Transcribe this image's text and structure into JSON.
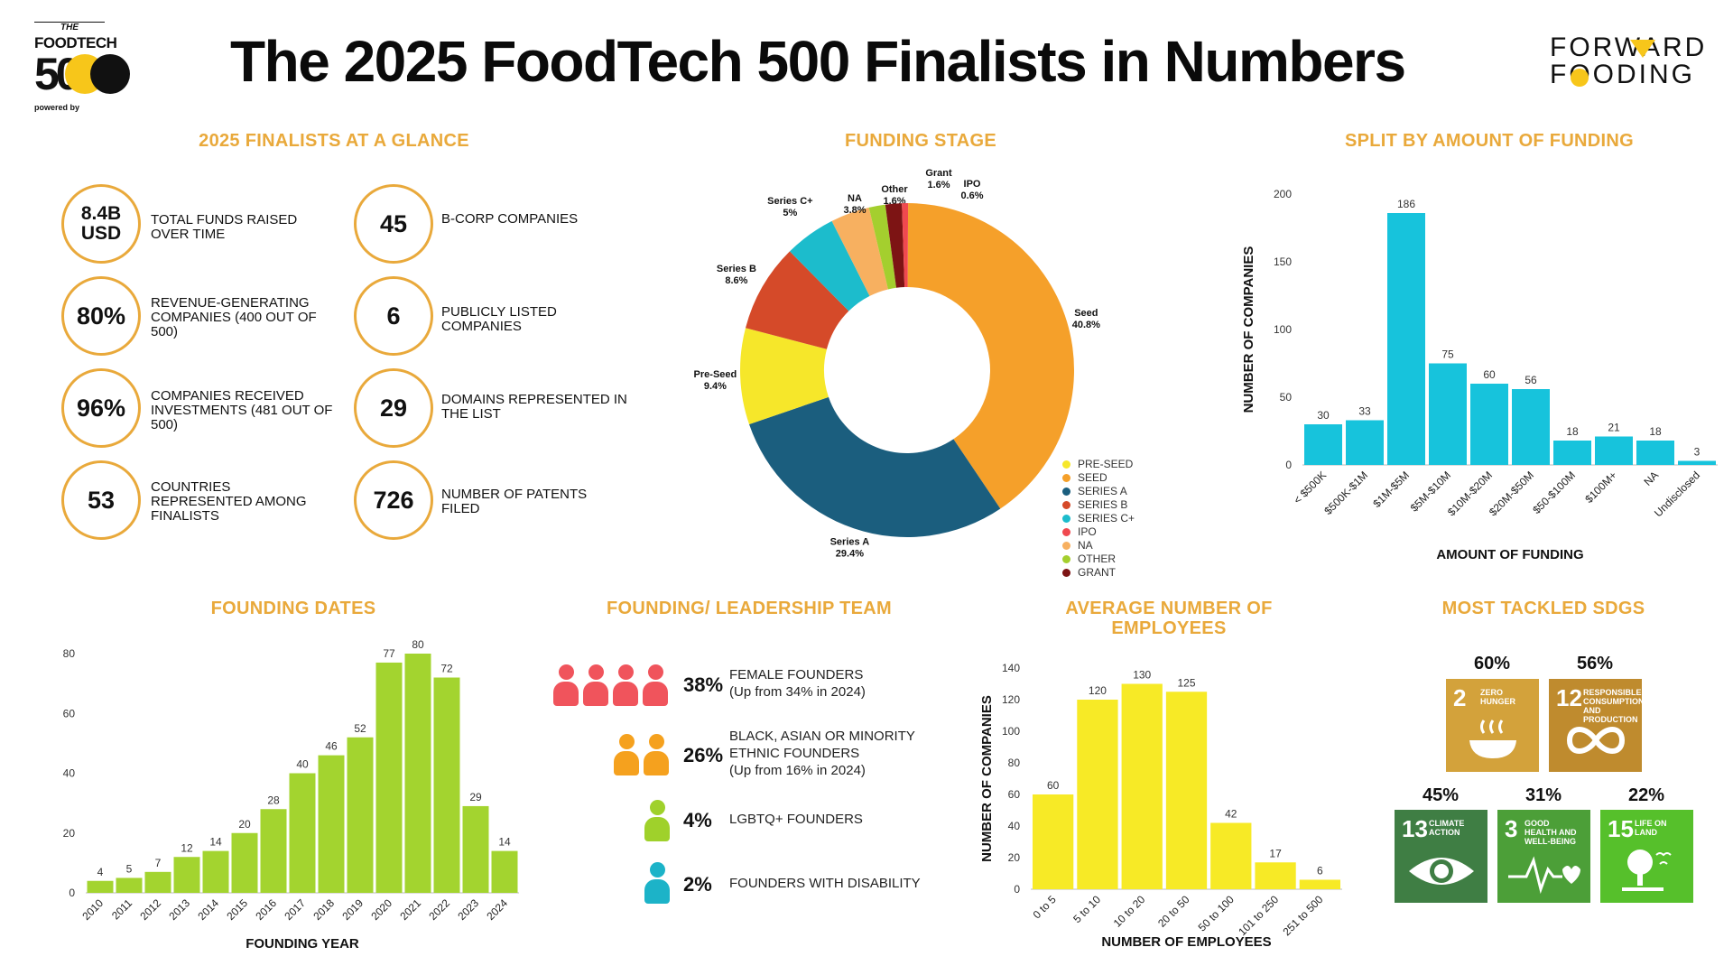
{
  "header": {
    "title": "The 2025 FoodTech 500 Finalists in Numbers",
    "logo_the": "THE",
    "logo_foodtech": "FOODTECH",
    "logo_500": "500",
    "logo_powered": "powered by",
    "brand_line1": "FORWARD",
    "brand_line2": "FOODING"
  },
  "glance": {
    "title": "2025 FINALISTS AT A GLANCE",
    "items": [
      {
        "value": "8.4B USD",
        "label": "TOTAL FUNDS RAISED OVER TIME"
      },
      {
        "value": "80%",
        "label": "REVENUE-GENERATING COMPANIES (400 out of 500)"
      },
      {
        "value": "96%",
        "label": "COMPANIES RECEIVED INVESTMENTS (481 out of 500)"
      },
      {
        "value": "53",
        "label": "COUNTRIES REPRESENTED AMONG FINALISTS"
      },
      {
        "value": "45",
        "label": "B-CORP COMPANIES"
      },
      {
        "value": "6",
        "label": "PUBLICLY LISTED COMPANIES"
      },
      {
        "value": "29",
        "label": "DOMAINS REPRESENTED IN THE LIST"
      },
      {
        "value": "726",
        "label": "NUMBER OF PATENTS FILED"
      }
    ]
  },
  "team": {
    "title": "FOUNDING/ LEADERSHIP TEAM",
    "rows": [
      {
        "pct": "38%",
        "line1": "FEMALE FOUNDERS",
        "line2": "(Up from 34% in 2024)",
        "line3": ""
      },
      {
        "pct": "26%",
        "line1": "BLACK, ASIAN OR MINORITY",
        "line2": "ETHNIC FOUNDERS",
        "line3": "(Up from 16% in 2024)"
      },
      {
        "pct": "4%",
        "line1": "LGBTQ+ FOUNDERS",
        "line2": "",
        "line3": ""
      },
      {
        "pct": "2%",
        "line1": "FOUNDERS WITH DISABILITY",
        "line2": "",
        "line3": ""
      }
    ],
    "colors": [
      "#f0545c",
      "#f5a11e",
      "#9fd12b",
      "#1cb3c8"
    ]
  },
  "sdgs": {
    "title": "MOST TACKLED SDGS",
    "items": [
      {
        "pct": "60%",
        "num": "2",
        "label": "ZERO HUNGER",
        "color": "#d3a23b"
      },
      {
        "pct": "56%",
        "num": "12",
        "label": "RESPONSIBLE CONSUMPTION AND PRODUCTION",
        "color": "#bf8b2e"
      },
      {
        "pct": "45%",
        "num": "13",
        "label": "CLIMATE ACTION",
        "color": "#3f7e44"
      },
      {
        "pct": "31%",
        "num": "3",
        "label": "GOOD HEALTH AND WELL-BEING",
        "color": "#4c9f38"
      },
      {
        "pct": "22%",
        "num": "15",
        "label": "LIFE ON LAND",
        "color": "#56c02b"
      }
    ]
  },
  "chart_data": [
    {
      "id": "funding_stage",
      "type": "pie",
      "title": "FUNDING STAGE",
      "slices": [
        {
          "name": "Seed",
          "legend": "SEED",
          "value": 40.8,
          "label": "40.8%",
          "color": "#f5a02a"
        },
        {
          "name": "Series A",
          "legend": "SERIES A",
          "value": 29.4,
          "label": "29.4%",
          "color": "#1b5e7e"
        },
        {
          "name": "Pre-Seed",
          "legend": "PRE-SEED",
          "value": 9.4,
          "label": "9.4%",
          "color": "#f6e72a"
        },
        {
          "name": "Series B",
          "legend": "SERIES B",
          "value": 8.6,
          "label": "8.6%",
          "color": "#d54a29"
        },
        {
          "name": "Series C+",
          "legend": "SERIES C+",
          "value": 5,
          "label": "5%",
          "color": "#1cbccc"
        },
        {
          "name": "NA",
          "legend": "NA",
          "value": 3.8,
          "label": "3.8%",
          "color": "#f7b060"
        },
        {
          "name": "Other",
          "legend": "OTHER",
          "value": 1.6,
          "label": "1.6%",
          "color": "#a4cf2e"
        },
        {
          "name": "Grant",
          "legend": "GRANT",
          "value": 1.6,
          "label": "1.6%",
          "color": "#7d1414"
        },
        {
          "name": "IPO",
          "legend": "IPO",
          "value": 0.6,
          "label": "0.6%",
          "color": "#f0494f"
        }
      ],
      "legend_order": [
        "PRE-SEED",
        "SEED",
        "SERIES A",
        "SERIES B",
        "SERIES C+",
        "IPO",
        "NA",
        "OTHER",
        "GRANT"
      ]
    },
    {
      "id": "funding_amount",
      "type": "bar",
      "title": "SPLIT BY AMOUNT OF FUNDING",
      "xlabel": "AMOUNT OF FUNDING",
      "ylabel": "NUMBER OF COMPANIES",
      "ylim": [
        0,
        200
      ],
      "yticks": [
        0,
        50,
        100,
        150,
        200
      ],
      "categories": [
        "< $500K",
        "$500K-$1M",
        "$1M-$5M",
        "$5M-$10M",
        "$10M-$20M",
        "$20M-$50M",
        "$50-$100M",
        "$100M+",
        "NA",
        "Undisclosed"
      ],
      "values": [
        30,
        33,
        186,
        75,
        60,
        56,
        18,
        21,
        18,
        3
      ],
      "color": "#17c3dc"
    },
    {
      "id": "founding_dates",
      "type": "bar",
      "title": "FOUNDING DATES",
      "xlabel": "FOUNDING YEAR",
      "ylabel": "",
      "ylim": [
        0,
        80
      ],
      "yticks": [
        0,
        20,
        40,
        60,
        80
      ],
      "categories": [
        "2010",
        "2011",
        "2012",
        "2013",
        "2014",
        "2015",
        "2016",
        "2017",
        "2018",
        "2019",
        "2020",
        "2021",
        "2022",
        "2023",
        "2024"
      ],
      "values": [
        4,
        5,
        7,
        12,
        14,
        20,
        28,
        40,
        46,
        52,
        77,
        80,
        72,
        29,
        14
      ],
      "color": "#a3d42f"
    },
    {
      "id": "employees",
      "type": "bar",
      "title": "AVERAGE NUMBER OF EMPLOYEES",
      "xlabel": "NUMBER OF EMPLOYEES",
      "ylabel": "NUMBER OF COMPANIES",
      "ylim": [
        0,
        140
      ],
      "yticks": [
        0,
        20,
        40,
        60,
        80,
        100,
        120,
        140
      ],
      "categories": [
        "0 to 5",
        "5 to 10",
        "10 to 20",
        "20 to 50",
        "50 to 100",
        "101 to 250",
        "251 to 500"
      ],
      "values": [
        60,
        120,
        130,
        125,
        42,
        17,
        6
      ],
      "color": "#f7ea26"
    }
  ]
}
